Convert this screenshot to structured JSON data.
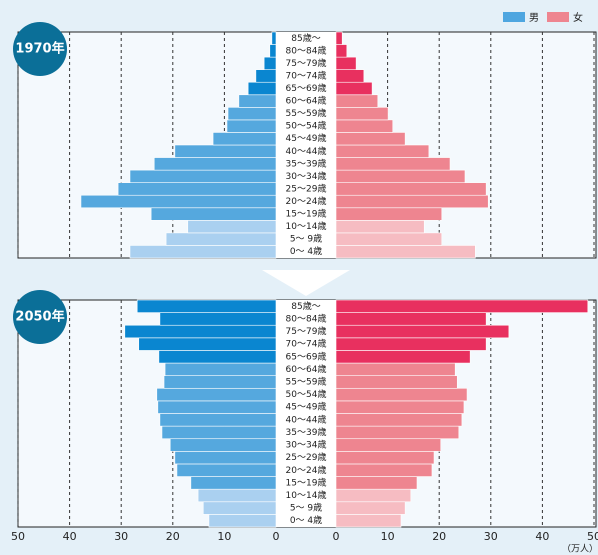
{
  "legend": [
    {
      "name": "男",
      "color": "#4ea6e0"
    },
    {
      "name": "女",
      "color": "#ee8590"
    }
  ],
  "x_label": "（万人）",
  "chart_data": [
    {
      "type": "pyramid",
      "title": "1970年",
      "categories": [
        "0～ 4歳",
        "5～ 9歳",
        "10～14歳",
        "15～19歳",
        "20～24歳",
        "25～29歳",
        "30～34歳",
        "35～39歳",
        "40～44歳",
        "45～49歳",
        "50～54歳",
        "55～59歳",
        "60～64歳",
        "65～69歳",
        "70～74歳",
        "75～79歳",
        "80～84歳",
        "85歳～"
      ],
      "xlim": [
        0,
        50
      ],
      "xticks": [
        0,
        10,
        20,
        30,
        40,
        50
      ],
      "grid": true,
      "series": [
        {
          "colors": [
            "#aad0f0",
            "#aad0f0",
            "#aad0f0",
            "#55a8de",
            "#55a8de",
            "#55a8de",
            "#55a8de",
            "#55a8de",
            "#55a8de",
            "#55a8de",
            "#55a8de",
            "#55a8de",
            "#55a8de",
            "#0a86d0",
            "#0a86d0",
            "#0a86d0",
            "#0a86d0",
            "#0a86d0"
          ],
          "values": [
            28.3,
            21.3,
            17.1,
            24.2,
            37.8,
            30.6,
            28.3,
            23.6,
            19.6,
            12.2,
            9.5,
            9.3,
            7.2,
            5.4,
            3.9,
            2.3,
            1.2,
            0.8
          ]
        },
        {
          "colors": [
            "#f6bcc2",
            "#f6bcc2",
            "#f6bcc2",
            "#ee8590",
            "#ee8590",
            "#ee8590",
            "#ee8590",
            "#ee8590",
            "#ee8590",
            "#ee8590",
            "#ee8590",
            "#ee8590",
            "#ee8590",
            "#e8305f",
            "#e8305f",
            "#e8305f",
            "#e8305f",
            "#e8305f"
          ],
          "values": [
            27.0,
            20.5,
            17.1,
            20.5,
            29.5,
            29.1,
            25.0,
            22.1,
            18.0,
            13.4,
            11.0,
            10.1,
            8.1,
            7.0,
            5.4,
            3.9,
            2.1,
            1.2
          ]
        }
      ]
    },
    {
      "type": "pyramid",
      "title": "2050年",
      "categories": [
        "0～ 4歳",
        "5～ 9歳",
        "10～14歳",
        "15～19歳",
        "20～24歳",
        "25～29歳",
        "30～34歳",
        "35～39歳",
        "40～44歳",
        "45～49歳",
        "50～54歳",
        "55～59歳",
        "60～64歳",
        "65～69歳",
        "70～74歳",
        "75～79歳",
        "80～84歳",
        "85歳～"
      ],
      "xlim": [
        0,
        50
      ],
      "xticks": [
        0,
        10,
        20,
        30,
        40,
        50
      ],
      "grid": true,
      "series": [
        {
          "colors": [
            "#aad0f0",
            "#aad0f0",
            "#aad0f0",
            "#55a8de",
            "#55a8de",
            "#55a8de",
            "#55a8de",
            "#55a8de",
            "#55a8de",
            "#55a8de",
            "#55a8de",
            "#55a8de",
            "#55a8de",
            "#0a86d0",
            "#0a86d0",
            "#0a86d0",
            "#0a86d0",
            "#0a86d0"
          ],
          "values": [
            13.0,
            14.1,
            15.1,
            16.5,
            19.2,
            19.6,
            20.5,
            22.1,
            22.5,
            22.9,
            23.1,
            21.7,
            21.5,
            22.7,
            26.6,
            29.3,
            22.5,
            26.9
          ]
        },
        {
          "colors": [
            "#f6bcc2",
            "#f6bcc2",
            "#f6bcc2",
            "#ee8590",
            "#ee8590",
            "#ee8590",
            "#ee8590",
            "#ee8590",
            "#ee8590",
            "#ee8590",
            "#ee8590",
            "#ee8590",
            "#ee8590",
            "#e8305f",
            "#e8305f",
            "#e8305f",
            "#e8305f",
            "#e8305f"
          ],
          "values": [
            12.6,
            13.4,
            14.5,
            15.7,
            18.6,
            19.0,
            20.3,
            23.8,
            24.4,
            24.8,
            25.4,
            23.5,
            23.1,
            26.0,
            29.1,
            33.5,
            29.1,
            48.8
          ]
        }
      ]
    }
  ]
}
